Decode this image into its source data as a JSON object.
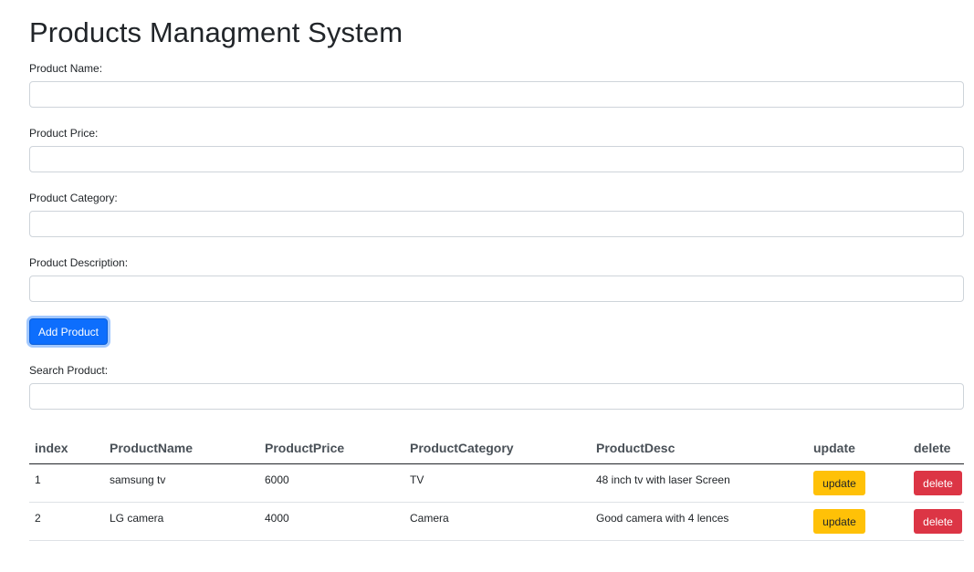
{
  "page": {
    "title": "Products Managment System"
  },
  "form": {
    "name_label": "Product Name:",
    "name_value": "",
    "price_label": "Product Price:",
    "price_value": "",
    "category_label": "Product Category:",
    "category_value": "",
    "description_label": "Product Description:",
    "description_value": "",
    "add_button": "Add Product"
  },
  "search": {
    "label": "Search Product:",
    "value": ""
  },
  "table": {
    "headers": [
      "index",
      "ProductName",
      "ProductPrice",
      "ProductCategory",
      "ProductDesc",
      "update",
      "delete"
    ],
    "rows": [
      {
        "index": "1",
        "name": "samsung tv",
        "price": "6000",
        "category": "TV",
        "desc": "48 inch tv with laser Screen",
        "update": "update",
        "delete": "delete"
      },
      {
        "index": "2",
        "name": "LG camera",
        "price": "4000",
        "category": "Camera",
        "desc": "Good camera with 4 lences",
        "update": "update",
        "delete": "delete"
      }
    ]
  },
  "colors": {
    "primary": "#0d6efd",
    "warning": "#ffc107",
    "danger": "#dc3545"
  }
}
